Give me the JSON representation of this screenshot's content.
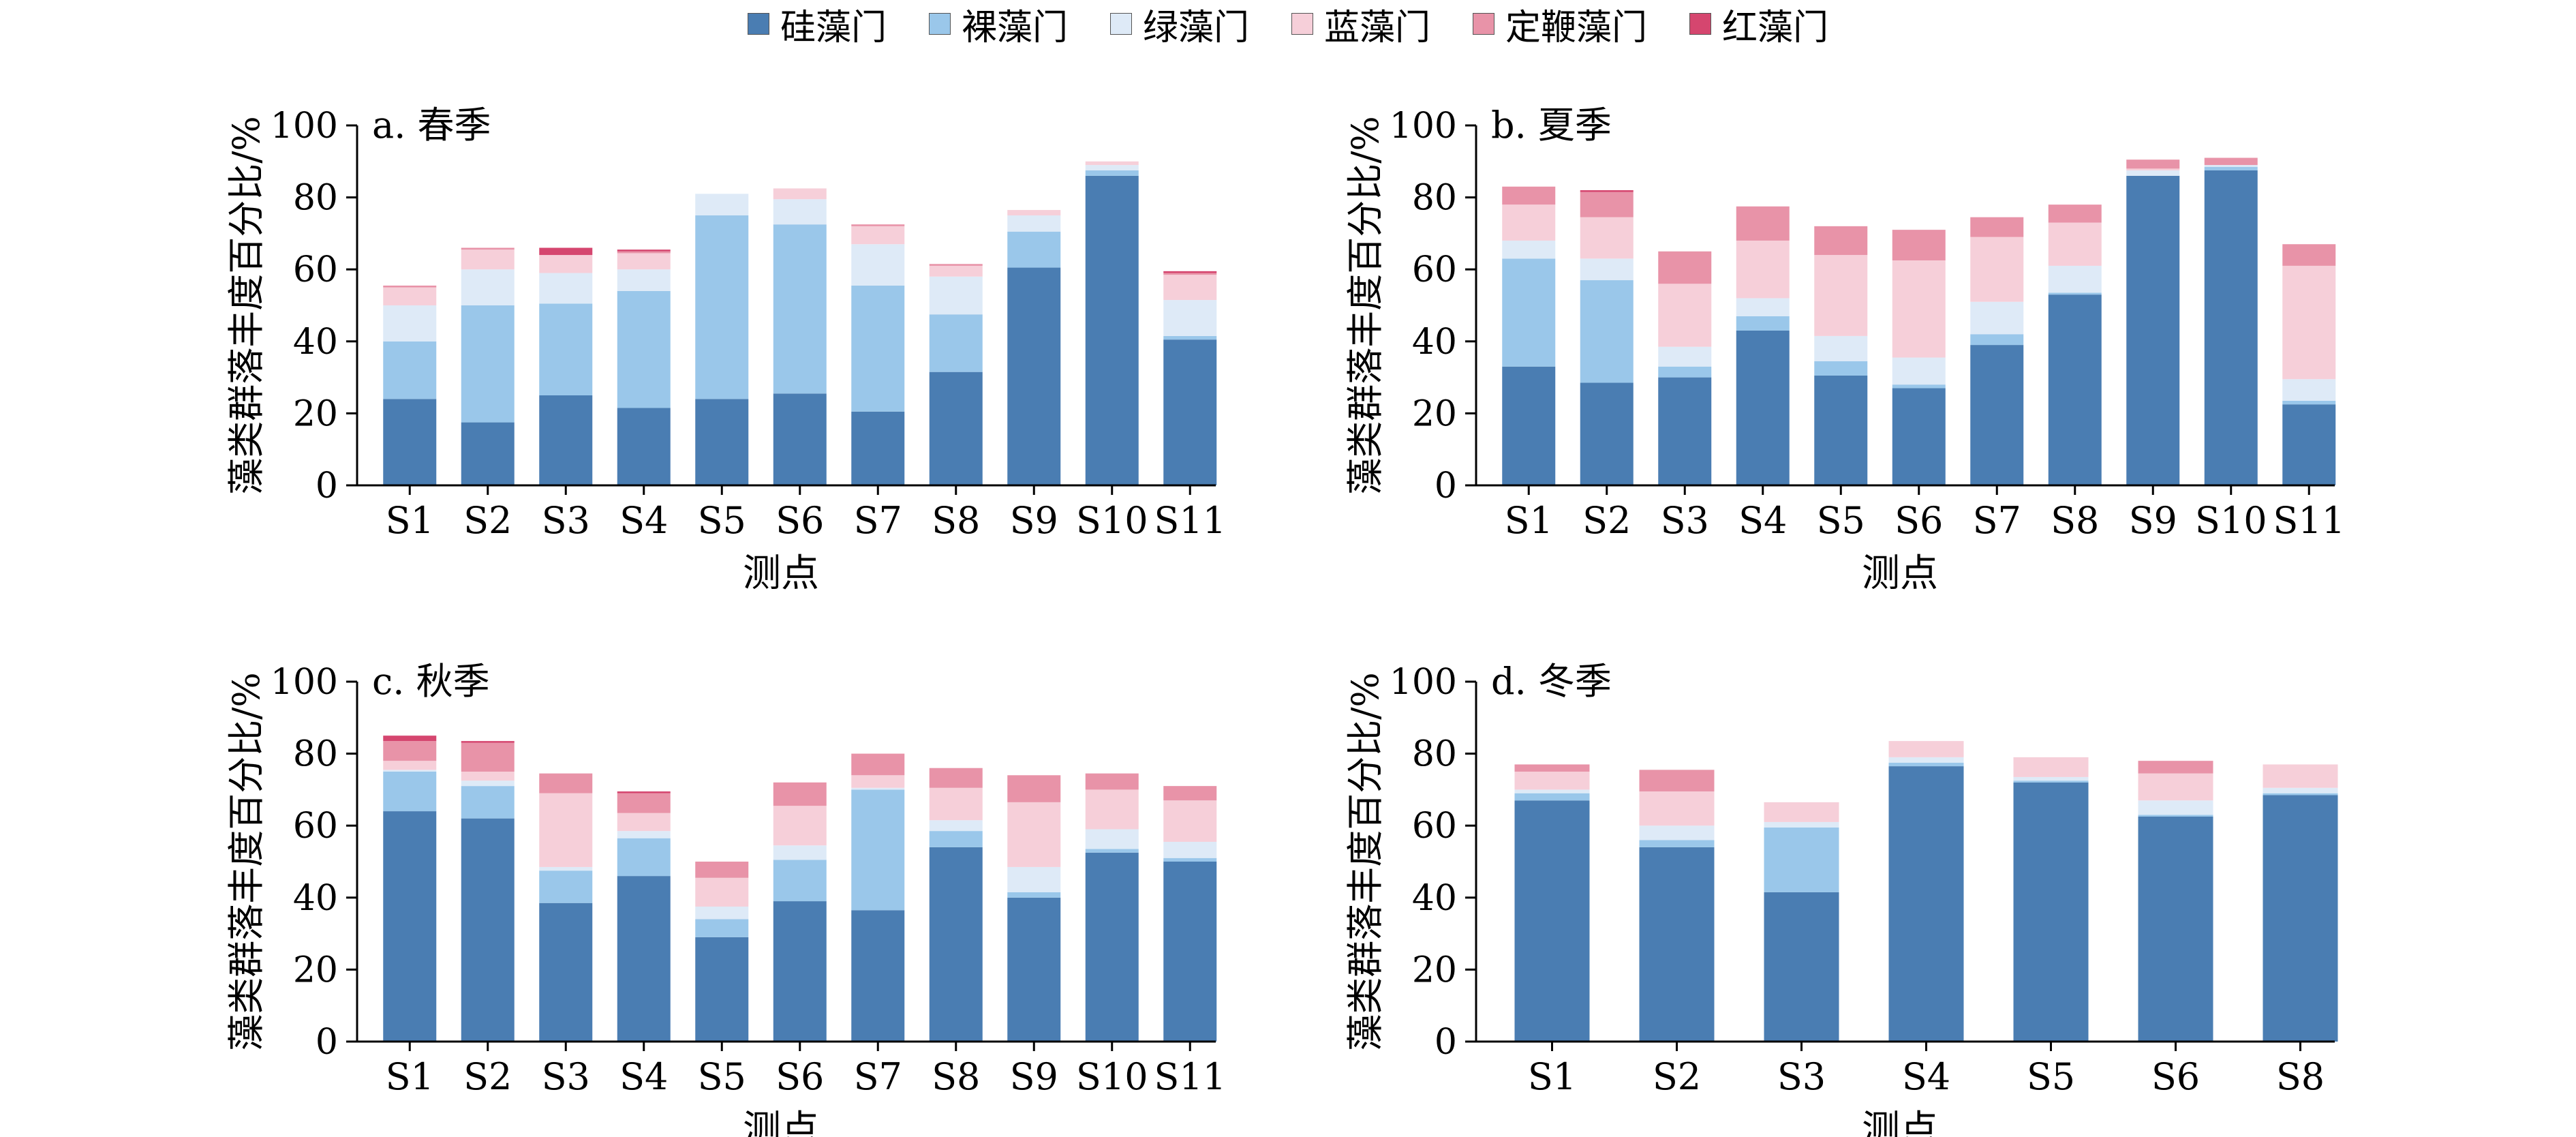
{
  "legend": {
    "items": [
      {
        "label": "硅藻门",
        "color": "#4a7db2"
      },
      {
        "label": "裸藻门",
        "color": "#9ac7ea"
      },
      {
        "label": "绿藻门",
        "color": "#deeaf7"
      },
      {
        "label": "蓝藻门",
        "color": "#f6cfd9"
      },
      {
        "label": "定鞭藻门",
        "color": "#e893a8"
      },
      {
        "label": "红藻门",
        "color": "#d5466f"
      }
    ]
  },
  "chart_data": [
    {
      "type": "bar",
      "stacked": true,
      "title": "a. 春季",
      "xlabel": "测点",
      "ylabel": "藻类群落丰度百分比/%",
      "ylim": [
        0,
        100
      ],
      "yticks": [
        "0",
        "20",
        "40",
        "60",
        "80",
        "100"
      ],
      "categories": [
        "S1",
        "S2",
        "S3",
        "S4",
        "S5",
        "S6",
        "S7",
        "S8",
        "S9",
        "S10",
        "S11"
      ],
      "series": [
        {
          "name": "硅藻门",
          "values": [
            24,
            17.5,
            25,
            21.5,
            24,
            25.5,
            20.5,
            31.5,
            60.5,
            86,
            40.5
          ]
        },
        {
          "name": "裸藻门",
          "values": [
            16,
            32.5,
            25.5,
            32.5,
            51,
            47,
            35,
            16,
            10,
            1.5,
            1
          ]
        },
        {
          "name": "绿藻门",
          "values": [
            10,
            10,
            8.5,
            6,
            6,
            7,
            11.5,
            10.5,
            4.5,
            1.5,
            10
          ]
        },
        {
          "name": "蓝藻门",
          "values": [
            5,
            5.5,
            5,
            4.5,
            0,
            3,
            5,
            3,
            1.5,
            1,
            7
          ]
        },
        {
          "name": "定鞭藻门",
          "values": [
            0.5,
            0.5,
            0,
            0.5,
            0,
            0,
            0.5,
            0.5,
            0,
            0,
            0.5
          ]
        },
        {
          "name": "红藻门",
          "values": [
            0,
            0,
            2,
            0.5,
            0,
            0,
            0,
            0,
            0,
            0,
            0.5
          ]
        }
      ]
    },
    {
      "type": "bar",
      "stacked": true,
      "title": "b. 夏季",
      "xlabel": "测点",
      "ylabel": "藻类群落丰度百分比/%",
      "ylim": [
        0,
        100
      ],
      "yticks": [
        "0",
        "20",
        "40",
        "60",
        "80",
        "100"
      ],
      "categories": [
        "S1",
        "S2",
        "S3",
        "S4",
        "S5",
        "S6",
        "S7",
        "S8",
        "S9",
        "S10",
        "S11"
      ],
      "series": [
        {
          "name": "硅藻门",
          "values": [
            33,
            28.5,
            30,
            43,
            30.5,
            27,
            39,
            53,
            86,
            87.5,
            22.5
          ]
        },
        {
          "name": "裸藻门",
          "values": [
            30,
            28.5,
            3,
            4,
            4,
            1,
            3,
            0.5,
            0,
            1,
            1
          ]
        },
        {
          "name": "绿藻门",
          "values": [
            5,
            6,
            5.5,
            5,
            7,
            7.5,
            9,
            7.5,
            1.5,
            0.5,
            6
          ]
        },
        {
          "name": "蓝藻门",
          "values": [
            10,
            11.5,
            17.5,
            16,
            22.5,
            27,
            18,
            12,
            0.5,
            0,
            31.5
          ]
        },
        {
          "name": "定鞭藻门",
          "values": [
            5,
            7,
            9,
            9.5,
            8,
            8.5,
            5.5,
            5,
            2.5,
            2,
            6
          ]
        },
        {
          "name": "红藻门",
          "values": [
            0,
            0.5,
            0,
            0,
            0,
            0,
            0,
            0,
            0,
            0,
            0
          ]
        }
      ]
    },
    {
      "type": "bar",
      "stacked": true,
      "title": "c. 秋季",
      "xlabel": "测点",
      "ylabel": "藻类群落丰度百分比/%",
      "ylim": [
        0,
        100
      ],
      "yticks": [
        "0",
        "20",
        "40",
        "60",
        "80",
        "100"
      ],
      "categories": [
        "S1",
        "S2",
        "S3",
        "S4",
        "S5",
        "S6",
        "S7",
        "S8",
        "S9",
        "S10",
        "S11"
      ],
      "series": [
        {
          "name": "硅藻门",
          "values": [
            64,
            62,
            38.5,
            46,
            29,
            39,
            36.5,
            54,
            40,
            52.5,
            50
          ]
        },
        {
          "name": "裸藻门",
          "values": [
            11,
            9,
            9,
            10.5,
            5,
            11.5,
            33.5,
            4.5,
            1.5,
            1,
            1
          ]
        },
        {
          "name": "绿藻门",
          "values": [
            0.5,
            1.5,
            1,
            2,
            3.5,
            4,
            0.5,
            3,
            7,
            5.5,
            4.5
          ]
        },
        {
          "name": "蓝藻门",
          "values": [
            2.5,
            2.5,
            20.5,
            5,
            8,
            11,
            3.5,
            9,
            18,
            11,
            11.5
          ]
        },
        {
          "name": "定鞭藻门",
          "values": [
            5.5,
            8,
            5.5,
            5.5,
            4.5,
            6.5,
            6,
            5.5,
            7.5,
            4.5,
            4
          ]
        },
        {
          "name": "红藻门",
          "values": [
            1.5,
            0.5,
            0,
            0.5,
            0,
            0,
            0,
            0,
            0,
            0,
            0
          ]
        }
      ]
    },
    {
      "type": "bar",
      "stacked": true,
      "title": "d. 冬季",
      "xlabel": "测点",
      "ylabel": "藻类群落丰度百分比/%",
      "ylim": [
        0,
        100
      ],
      "yticks": [
        "0",
        "20",
        "40",
        "60",
        "80",
        "100"
      ],
      "categories": [
        "S1",
        "S2",
        "S3",
        "S4",
        "S5",
        "S6",
        "S8"
      ],
      "series": [
        {
          "name": "硅藻门",
          "values": [
            67,
            54,
            41.5,
            76.5,
            72,
            62.5,
            68.5
          ]
        },
        {
          "name": "裸藻门",
          "values": [
            2,
            2,
            18,
            1,
            0.5,
            0.5,
            0.5
          ]
        },
        {
          "name": "绿藻门",
          "values": [
            1,
            4,
            1.5,
            1.5,
            1,
            4,
            1.5
          ]
        },
        {
          "name": "蓝藻门",
          "values": [
            5,
            9.5,
            5.5,
            4.5,
            5.5,
            7.5,
            6.5
          ]
        },
        {
          "name": "定鞭藻门",
          "values": [
            2,
            6,
            0,
            0,
            0,
            3.5,
            0
          ]
        },
        {
          "name": "红藻门",
          "values": [
            0,
            0,
            0,
            0,
            0,
            0,
            0
          ]
        }
      ]
    }
  ]
}
